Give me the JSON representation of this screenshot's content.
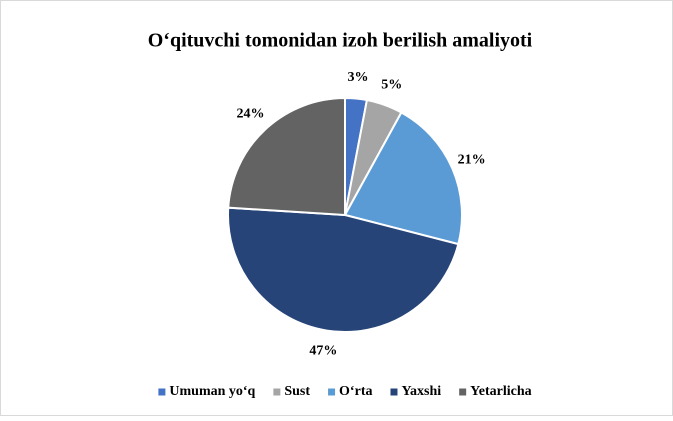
{
  "chart_data": {
    "type": "pie",
    "title": "O‘qituvchi tomonidan izoh berilish amaliyoti",
    "categories": [
      "Umuman yo‘q",
      "Sust",
      "O‘rta",
      "Yaxshi",
      "Yetarlicha"
    ],
    "values": [
      3,
      5,
      21,
      47,
      24
    ],
    "value_labels": [
      "3%",
      "5%",
      "21%",
      "47%",
      "24%"
    ],
    "colors": [
      "#4472c4",
      "#a5a5a5",
      "#5b9bd5",
      "#264478",
      "#636363"
    ],
    "legend": "bottom"
  }
}
